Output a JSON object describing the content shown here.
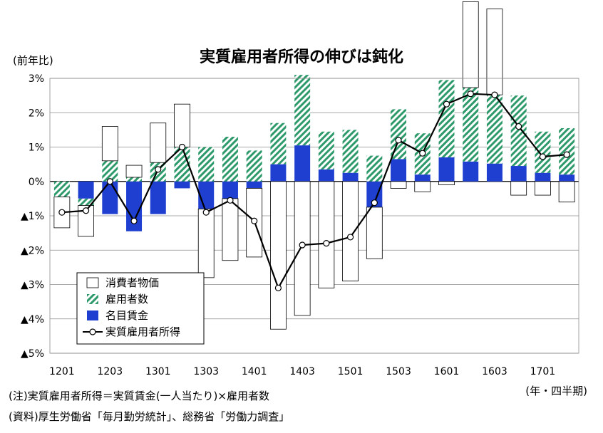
{
  "title": "実質雇用者所得の伸びは鈍化",
  "unit_label": "(前年比)",
  "period_note": "(年・四半期)",
  "note1": "(注)実質雇用者所得＝実質賃金(一人当たり)×雇用者数",
  "note2": "(資料)厚生労働省「毎月勤労統計」、総務省「労働力調査」",
  "colors": {
    "cpi_fill": "#ffffff",
    "employment_stripe": "#2e9a6b",
    "nominal_wage": "#1f3fd0",
    "line": "#000000"
  },
  "chart_data": {
    "type": "bar",
    "categories": [
      "1201",
      "1202",
      "1203",
      "1204",
      "1301",
      "1302",
      "1303",
      "1304",
      "1401",
      "1402",
      "1403",
      "1404",
      "1501",
      "1502",
      "1503",
      "1504",
      "1601",
      "1602",
      "1603",
      "1604",
      "1701",
      "1702"
    ],
    "x_tick_labels": [
      "1201",
      "1203",
      "1301",
      "1303",
      "1401",
      "1403",
      "1501",
      "1503",
      "1601",
      "1603",
      "1701"
    ],
    "ylim": [
      -5,
      3
    ],
    "y_ticks": [
      3,
      2,
      1,
      0,
      -1,
      -2,
      -3,
      -4,
      -5
    ],
    "y_tick_labels": [
      "3%",
      "2%",
      "1%",
      "0%",
      "▲1%",
      "▲2%",
      "▲3%",
      "▲4%",
      "▲5%"
    ],
    "grid": true,
    "legend_position": "bottom-left",
    "series": [
      {
        "name": "消費者物価",
        "kind": "stacked-bar",
        "style": "white",
        "values": [
          -0.9,
          -0.9,
          1.0,
          0.35,
          1.15,
          1.25,
          -2.0,
          -1.8,
          -2.0,
          -4.3,
          -3.9,
          -3.1,
          -2.9,
          -1.5,
          -0.2,
          -0.3,
          -0.1,
          2.5,
          2.5,
          -0.4,
          -0.4,
          -0.6
        ]
      },
      {
        "name": "雇用者数",
        "kind": "stacked-bar",
        "style": "hatched",
        "values": [
          -0.45,
          -0.2,
          0.6,
          0.12,
          0.55,
          1.0,
          1.0,
          1.3,
          0.9,
          1.2,
          2.05,
          1.1,
          1.25,
          0.75,
          1.45,
          1.2,
          2.25,
          2.15,
          2.0,
          2.05,
          1.2,
          1.35
        ]
      },
      {
        "name": "名目賃金",
        "kind": "stacked-bar",
        "style": "solid",
        "values": [
          0.0,
          -0.5,
          -0.95,
          -1.45,
          -0.95,
          -0.2,
          -0.8,
          -0.5,
          -0.2,
          0.5,
          1.05,
          0.35,
          0.25,
          -0.75,
          0.65,
          0.2,
          0.7,
          0.58,
          0.52,
          0.45,
          0.25,
          0.2
        ]
      },
      {
        "name": "実質雇用者所得",
        "kind": "line",
        "values": [
          -0.9,
          -0.85,
          0.0,
          -1.15,
          0.35,
          1.0,
          -0.9,
          -0.55,
          -1.15,
          -3.1,
          -1.85,
          -1.8,
          -1.62,
          -0.62,
          1.2,
          0.82,
          2.25,
          2.55,
          2.52,
          1.6,
          0.72,
          0.78
        ]
      }
    ]
  }
}
